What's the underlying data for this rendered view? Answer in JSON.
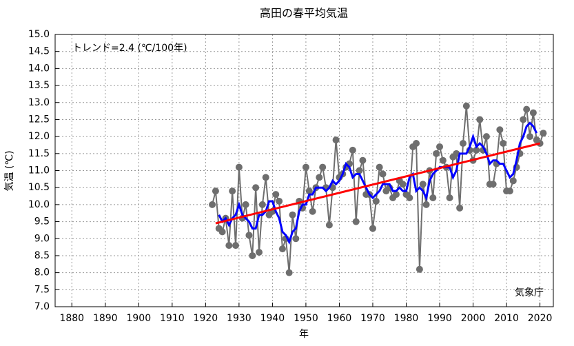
{
  "chart_data": {
    "type": "line",
    "title": "高田の春平均気温",
    "xlabel": "年",
    "ylabel": "気温 (℃)",
    "annotations": [
      "トレンド=2.4 (℃/100年)",
      "気象庁"
    ],
    "xlim": [
      1875,
      2024
    ],
    "ylim": [
      7,
      15
    ],
    "xticks": [
      1880,
      1890,
      1900,
      1910,
      1920,
      1930,
      1940,
      1950,
      1960,
      1970,
      1980,
      1990,
      2000,
      2010,
      2020
    ],
    "yticks": [
      {
        "value": 7,
        "label": "7.0"
      },
      7.5,
      {
        "value": 8,
        "label": "8.0"
      },
      8.5,
      {
        "value": 9,
        "label": "9.0"
      },
      9.5,
      {
        "value": 10,
        "label": "10.0"
      },
      10.5,
      {
        "value": 11,
        "label": "11.0"
      },
      11.5,
      {
        "value": 12,
        "label": "12.0"
      },
      12.5,
      {
        "value": 13,
        "label": "13.0"
      },
      13.5,
      {
        "value": 14,
        "label": "14.0"
      },
      14.5,
      {
        "value": 15,
        "label": "15.0"
      }
    ],
    "grid": true,
    "series": [
      {
        "color": "#6e6e6e",
        "marker": "circle",
        "x": [
          1922,
          1923,
          1924,
          1925,
          1926,
          1927,
          1928,
          1929,
          1930,
          1931,
          1932,
          1933,
          1934,
          1935,
          1936,
          1937,
          1938,
          1939,
          1940,
          1941,
          1942,
          1943,
          1944,
          1945,
          1946,
          1947,
          1948,
          1949,
          1950,
          1951,
          1952,
          1953,
          1954,
          1955,
          1956,
          1957,
          1958,
          1959,
          1960,
          1961,
          1962,
          1963,
          1964,
          1965,
          1966,
          1967,
          1968,
          1969,
          1970,
          1971,
          1972,
          1973,
          1974,
          1975,
          1976,
          1977,
          1978,
          1979,
          1980,
          1981,
          1982,
          1983,
          1984,
          1985,
          1986,
          1987,
          1988,
          1989,
          1990,
          1991,
          1992,
          1993,
          1994,
          1995,
          1996,
          1997,
          1998,
          1999,
          2000,
          2001,
          2002,
          2003,
          2004,
          2005,
          2006,
          2007,
          2008,
          2009,
          2010,
          2011,
          2012,
          2013,
          2014,
          2015,
          2016,
          2017,
          2018,
          2019,
          2020,
          2021
        ],
        "values": [
          10.0,
          10.4,
          9.3,
          9.2,
          9.6,
          8.8,
          10.4,
          8.8,
          11.1,
          9.6,
          10.0,
          9.1,
          8.5,
          10.5,
          8.6,
          10.0,
          10.8,
          9.7,
          9.8,
          10.3,
          10.1,
          8.7,
          9.0,
          8.0,
          9.7,
          9.0,
          10.1,
          9.9,
          11.1,
          10.4,
          9.8,
          10.5,
          10.8,
          11.1,
          10.5,
          9.4,
          10.5,
          11.9,
          10.8,
          10.9,
          11.1,
          11.2,
          11.6,
          9.5,
          11.0,
          11.3,
          10.3,
          10.3,
          9.3,
          10.1,
          11.1,
          10.9,
          10.4,
          10.5,
          10.2,
          10.3,
          10.7,
          10.6,
          10.3,
          10.2,
          11.7,
          11.8,
          8.1,
          10.6,
          10.0,
          11.0,
          10.2,
          11.5,
          11.7,
          11.3,
          11.1,
          10.2,
          11.4,
          11.5,
          9.9,
          11.8,
          12.9,
          11.6,
          11.3,
          11.6,
          12.5,
          11.6,
          12.0,
          10.6,
          10.6,
          11.2,
          12.2,
          11.8,
          10.4,
          10.4,
          10.7,
          11.1,
          11.5,
          12.5,
          12.8,
          12.0,
          12.7,
          11.9,
          11.8,
          12.1
        ]
      },
      {
        "color": "#0000ff",
        "x": [
          1924,
          1925,
          1926,
          1927,
          1928,
          1929,
          1930,
          1931,
          1932,
          1933,
          1934,
          1935,
          1936,
          1937,
          1938,
          1939,
          1940,
          1941,
          1942,
          1943,
          1944,
          1945,
          1946,
          1947,
          1948,
          1949,
          1950,
          1951,
          1952,
          1953,
          1954,
          1955,
          1956,
          1957,
          1958,
          1959,
          1960,
          1961,
          1962,
          1963,
          1964,
          1965,
          1966,
          1967,
          1968,
          1969,
          1970,
          1971,
          1972,
          1973,
          1974,
          1975,
          1976,
          1977,
          1978,
          1979,
          1980,
          1981,
          1982,
          1983,
          1984,
          1985,
          1986,
          1987,
          1988,
          1989,
          1990,
          1991,
          1992,
          1993,
          1994,
          1995,
          1996,
          1997,
          1998,
          1999,
          2000,
          2001,
          2002,
          2003,
          2004,
          2005,
          2006,
          2007,
          2008,
          2009,
          2010,
          2011,
          2012,
          2013,
          2014,
          2015,
          2016,
          2017,
          2018,
          2019
        ],
        "values": [
          9.7,
          9.5,
          9.6,
          9.4,
          9.6,
          9.7,
          10.0,
          9.7,
          9.6,
          9.5,
          9.3,
          9.3,
          9.7,
          9.7,
          9.8,
          10.1,
          10.1,
          9.8,
          9.6,
          9.2,
          9.1,
          8.9,
          9.2,
          9.3,
          9.8,
          10.0,
          10.0,
          10.3,
          10.3,
          10.5,
          10.5,
          10.5,
          10.4,
          10.5,
          10.7,
          10.6,
          10.7,
          10.9,
          11.2,
          11.1,
          10.8,
          10.9,
          10.9,
          10.7,
          10.5,
          10.3,
          10.2,
          10.3,
          10.4,
          10.6,
          10.6,
          10.6,
          10.4,
          10.4,
          10.5,
          10.4,
          10.4,
          10.8,
          10.9,
          10.4,
          10.5,
          10.4,
          10.2,
          10.7,
          10.9,
          11.0,
          11.1,
          11.1,
          11.1,
          11.1,
          10.8,
          11.0,
          11.5,
          11.5,
          11.5,
          11.7,
          12.0,
          11.7,
          11.8,
          11.7,
          11.5,
          11.2,
          11.3,
          11.3,
          11.2,
          11.2,
          11.0,
          10.8,
          10.9,
          11.3,
          11.8,
          12.0,
          12.3,
          12.4,
          12.3,
          12.1
        ]
      },
      {
        "color": "#ff0000",
        "x": [
          1923,
          2020
        ],
        "values": [
          9.45,
          11.8
        ]
      }
    ]
  }
}
